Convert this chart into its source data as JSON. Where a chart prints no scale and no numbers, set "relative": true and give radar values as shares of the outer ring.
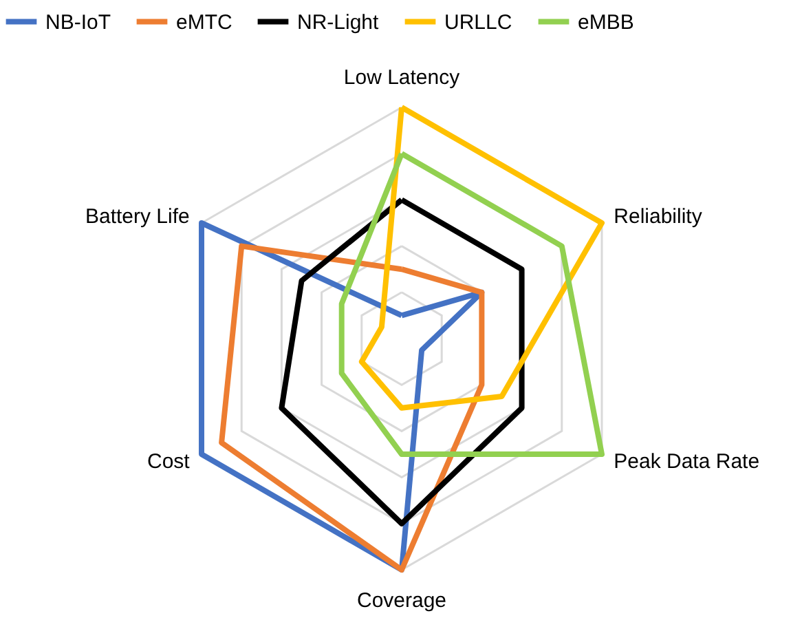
{
  "chart_data": {
    "type": "radar",
    "relative": true,
    "grid": true,
    "legend": "top",
    "categories": [
      "Low Latency",
      "Reliability",
      "Peak Data Rate",
      "Coverage",
      "Cost",
      "Battery Life"
    ],
    "series": [
      {
        "name": "NB-IoT",
        "color": "#4472c4",
        "values": [
          0.1,
          0.4,
          0.1,
          1.0,
          1.0,
          1.0
        ]
      },
      {
        "name": "eMTC",
        "color": "#ed7d31",
        "values": [
          0.3,
          0.4,
          0.4,
          1.0,
          0.9,
          0.8
        ]
      },
      {
        "name": "NR-Light",
        "color": "#000000",
        "values": [
          0.6,
          0.6,
          0.6,
          0.8,
          0.6,
          0.5
        ]
      },
      {
        "name": "URLLC",
        "color": "#ffc000",
        "values": [
          1.0,
          1.0,
          0.5,
          0.3,
          0.2,
          0.1
        ]
      },
      {
        "name": "eMBB",
        "color": "#92d050",
        "values": [
          0.8,
          0.8,
          1.0,
          0.5,
          0.3,
          0.3
        ]
      }
    ]
  }
}
